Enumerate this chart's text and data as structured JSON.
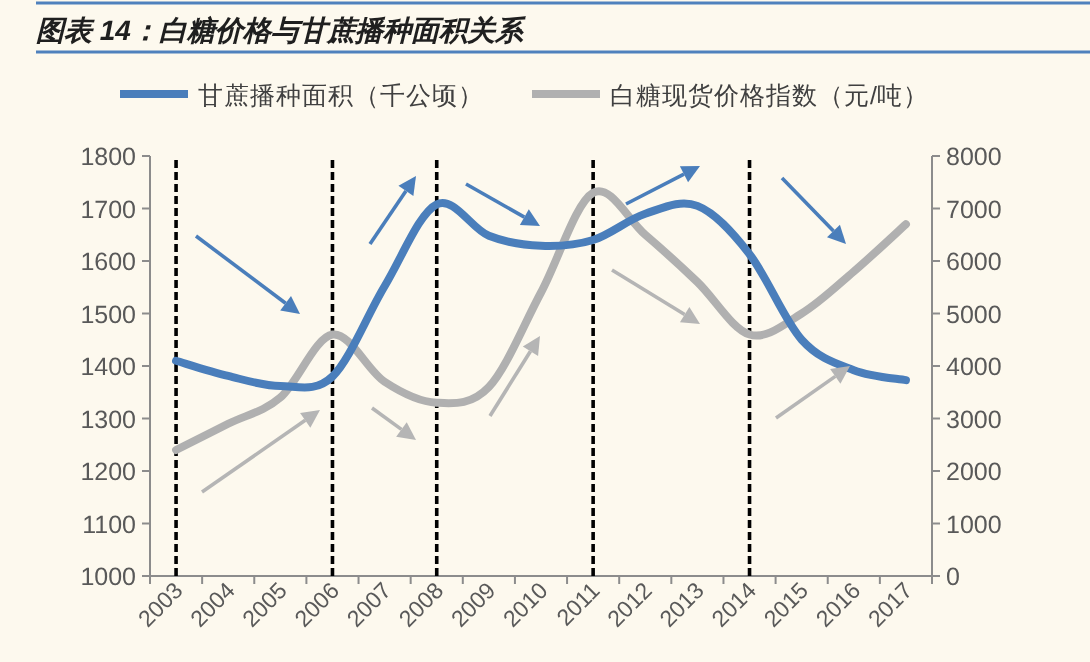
{
  "chart_data": {
    "type": "line",
    "title": "图表 14：白糖价格与甘蔗播种面积关系",
    "categories": [
      "2003",
      "2004",
      "2005",
      "2006",
      "2007",
      "2008",
      "2009",
      "2010",
      "2011",
      "2012",
      "2013",
      "2014",
      "2015",
      "2016",
      "2017"
    ],
    "series": [
      {
        "name": "甘蔗播种面积（千公顷）",
        "color": "#4a7ebb",
        "values": [
          1410,
          1381,
          1362,
          1380,
          1552,
          1708,
          1648,
          1629,
          1640,
          1690,
          1705,
          1613,
          1450,
          1392,
          1373
        ]
      },
      {
        "name": "白糖现货价格指数（元/吨）",
        "color": "#b0b0b0",
        "axis": "y2",
        "values": [
          2400,
          2900,
          3400,
          4600,
          3700,
          3300,
          3600,
          5400,
          7300,
          6500,
          5600,
          4600,
          5000,
          5800,
          6700
        ]
      }
    ],
    "ylim": [
      1000,
      1800
    ],
    "yticks": [
      1000,
      1100,
      1200,
      1300,
      1400,
      1500,
      1600,
      1700,
      1800
    ],
    "y2lim": [
      0,
      8000
    ],
    "y2ticks": [
      0,
      1000,
      2000,
      3000,
      4000,
      5000,
      6000,
      7000,
      8000
    ],
    "ref_lines": [
      {
        "axis": "x",
        "value": "2003",
        "color": "#000000",
        "line_style": "dashed"
      },
      {
        "axis": "x",
        "value": "2006",
        "color": "#000000",
        "line_style": "dashed"
      },
      {
        "axis": "x",
        "value": "2008",
        "color": "#000000",
        "line_style": "dashed"
      },
      {
        "axis": "x",
        "value": "2011",
        "color": "#000000",
        "line_style": "dashed"
      },
      {
        "axis": "x",
        "value": "2014",
        "color": "#000000",
        "line_style": "dashed"
      }
    ],
    "legend": "top",
    "grid": false,
    "marker": "none",
    "line_style": "solid"
  }
}
